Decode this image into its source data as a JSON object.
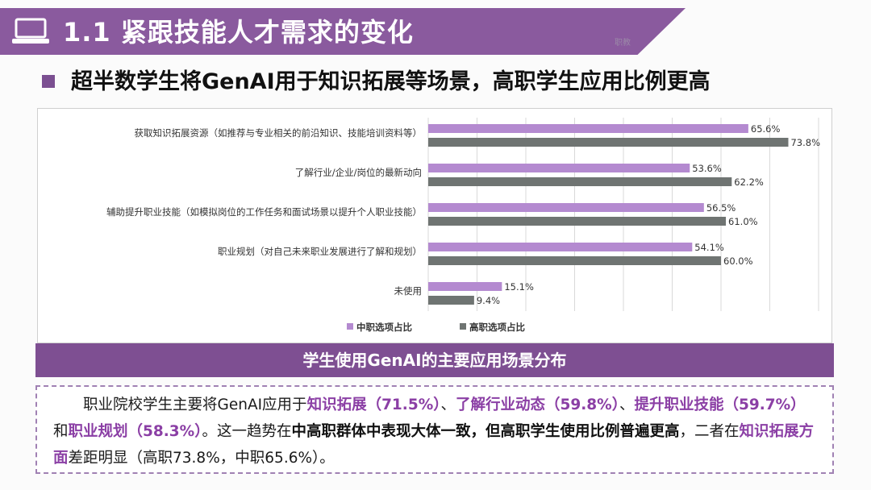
{
  "header": {
    "title": "1.1 紧跟技能人才需求的变化",
    "logo_text": "职教"
  },
  "subtitle": "超半数学生将GenAI用于知识拓展等场景，高职学生应用比例更高",
  "chart_data": {
    "type": "bar",
    "orientation": "horizontal",
    "categories": [
      "获取知识拓展资源（如推荐与专业相关的前沿知识、技能培训资料等）",
      "了解行业/企业/岗位的最新动向",
      "辅助提升职业技能（如模拟岗位的工作任务和面试场景以提升个人职业技能）",
      "职业规划（对自己未来职业发展进行了解和规划）",
      "未使用"
    ],
    "series": [
      {
        "name": "中职选项占比",
        "values": [
          65.6,
          53.6,
          56.5,
          54.1,
          15.1
        ],
        "labels": [
          "65.6%",
          "53.6%",
          "56.5%",
          "54.1%",
          "15.1%"
        ],
        "color": "#b48ad0"
      },
      {
        "name": "高职选项占比",
        "values": [
          73.8,
          62.2,
          61.0,
          60.0,
          9.4
        ],
        "labels": [
          "73.8%",
          "62.2%",
          "61.0%",
          "60.0%",
          "9.4%"
        ],
        "color": "#6f7472"
      }
    ],
    "xlim": [
      0,
      80
    ],
    "grid": true,
    "legend": "bottom"
  },
  "caption": "学生使用GenAI的主要应用场景分布",
  "summary": {
    "t1": "职业院校学生主要将GenAI应用于",
    "h1": "知识拓展（71.5%）",
    "t2": "、",
    "h2": "了解行业动态（59.8%）",
    "t3": "、",
    "h3": "提升职业技能（59.7%）",
    "t4": "和",
    "h4": "职业规划（58.3%）",
    "t5": "。这一趋势在",
    "b1": "中高职群体中表现大体一致，但高职学生使用比例普遍更高",
    "t6": "，二者在",
    "h5": "知识拓展方面",
    "t7": "差距明显（高职73.8%，中职65.6%）。"
  }
}
